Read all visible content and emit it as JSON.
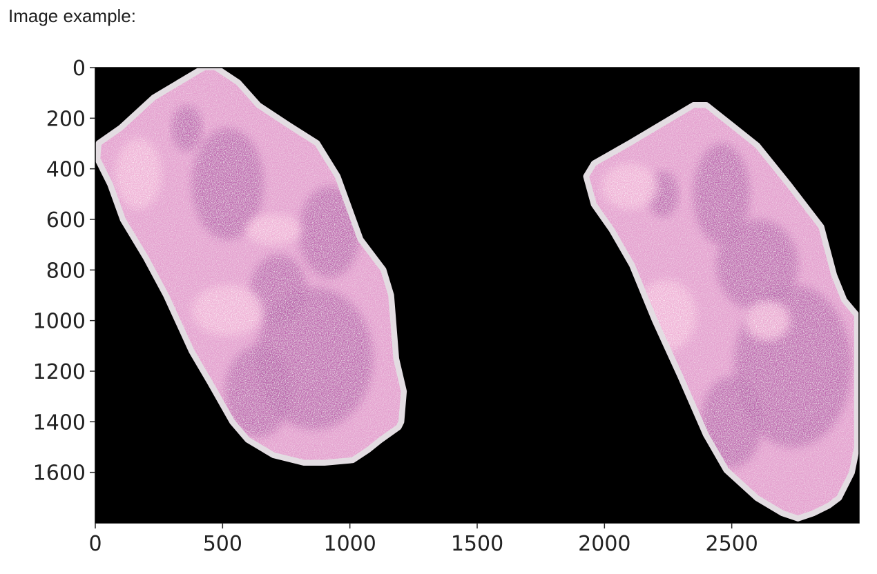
{
  "caption": "Image example:",
  "chart_data": {
    "type": "image",
    "title": "",
    "xlabel": "",
    "ylabel": "",
    "xlim": [
      0,
      3000
    ],
    "ylim": [
      1800,
      0
    ],
    "x_ticks": [
      0,
      500,
      1000,
      1500,
      2000,
      2500
    ],
    "y_ticks": [
      0,
      200,
      400,
      600,
      800,
      1000,
      1200,
      1400,
      1600
    ],
    "grid": false,
    "background_color": "#000000",
    "tissue_color": "#d98fc8",
    "tissue_light_color": "#f2b6d8",
    "tissue_edge_color": "#e3dde2",
    "tissue_dark_color": "#b55ba8",
    "objects": [
      {
        "name": "tissue-left",
        "outline": [
          [
            430,
            0
          ],
          [
            470,
            0
          ],
          [
            560,
            60
          ],
          [
            640,
            150
          ],
          [
            760,
            230
          ],
          [
            870,
            300
          ],
          [
            950,
            430
          ],
          [
            1040,
            680
          ],
          [
            1130,
            800
          ],
          [
            1160,
            900
          ],
          [
            1180,
            1150
          ],
          [
            1210,
            1280
          ],
          [
            1200,
            1400
          ],
          [
            1190,
            1420
          ],
          [
            1120,
            1470
          ],
          [
            1070,
            1510
          ],
          [
            1010,
            1550
          ],
          [
            900,
            1560
          ],
          [
            820,
            1560
          ],
          [
            700,
            1530
          ],
          [
            600,
            1470
          ],
          [
            540,
            1400
          ],
          [
            450,
            1240
          ],
          [
            380,
            1120
          ],
          [
            280,
            900
          ],
          [
            200,
            750
          ],
          [
            110,
            600
          ],
          [
            60,
            460
          ],
          [
            10,
            360
          ],
          [
            15,
            300
          ],
          [
            100,
            240
          ],
          [
            230,
            120
          ]
        ],
        "dark_blobs": [
          {
            "cx": 360,
            "cy": 240,
            "rx": 60,
            "ry": 90
          },
          {
            "cx": 520,
            "cy": 460,
            "rx": 140,
            "ry": 220
          },
          {
            "cx": 720,
            "cy": 880,
            "rx": 110,
            "ry": 140
          },
          {
            "cx": 920,
            "cy": 650,
            "rx": 120,
            "ry": 180
          },
          {
            "cx": 860,
            "cy": 1150,
            "rx": 230,
            "ry": 280
          },
          {
            "cx": 640,
            "cy": 1280,
            "rx": 130,
            "ry": 180
          }
        ],
        "light_blobs": [
          {
            "cx": 520,
            "cy": 960,
            "rx": 140,
            "ry": 100
          },
          {
            "cx": 170,
            "cy": 420,
            "rx": 90,
            "ry": 140
          },
          {
            "cx": 700,
            "cy": 640,
            "rx": 110,
            "ry": 60
          }
        ]
      },
      {
        "name": "tissue-right",
        "outline": [
          [
            2350,
            150
          ],
          [
            2400,
            150
          ],
          [
            2500,
            230
          ],
          [
            2600,
            310
          ],
          [
            2720,
            460
          ],
          [
            2850,
            630
          ],
          [
            2900,
            820
          ],
          [
            2940,
            920
          ],
          [
            2990,
            980
          ],
          [
            2990,
            1300
          ],
          [
            2990,
            1500
          ],
          [
            2970,
            1600
          ],
          [
            2920,
            1700
          ],
          [
            2880,
            1730
          ],
          [
            2820,
            1760
          ],
          [
            2760,
            1780
          ],
          [
            2700,
            1760
          ],
          [
            2600,
            1700
          ],
          [
            2480,
            1590
          ],
          [
            2400,
            1450
          ],
          [
            2300,
            1220
          ],
          [
            2200,
            1000
          ],
          [
            2110,
            780
          ],
          [
            2030,
            640
          ],
          [
            1960,
            540
          ],
          [
            1930,
            430
          ],
          [
            1960,
            380
          ],
          [
            2100,
            300
          ]
        ],
        "dark_blobs": [
          {
            "cx": 2460,
            "cy": 500,
            "rx": 110,
            "ry": 200
          },
          {
            "cx": 2600,
            "cy": 780,
            "rx": 160,
            "ry": 180
          },
          {
            "cx": 2740,
            "cy": 1180,
            "rx": 230,
            "ry": 320
          },
          {
            "cx": 2500,
            "cy": 1400,
            "rx": 120,
            "ry": 180
          },
          {
            "cx": 2230,
            "cy": 500,
            "rx": 60,
            "ry": 90
          }
        ],
        "light_blobs": [
          {
            "cx": 2240,
            "cy": 980,
            "rx": 120,
            "ry": 140
          },
          {
            "cx": 2100,
            "cy": 470,
            "rx": 110,
            "ry": 90
          },
          {
            "cx": 2640,
            "cy": 1000,
            "rx": 90,
            "ry": 80
          }
        ]
      }
    ]
  }
}
